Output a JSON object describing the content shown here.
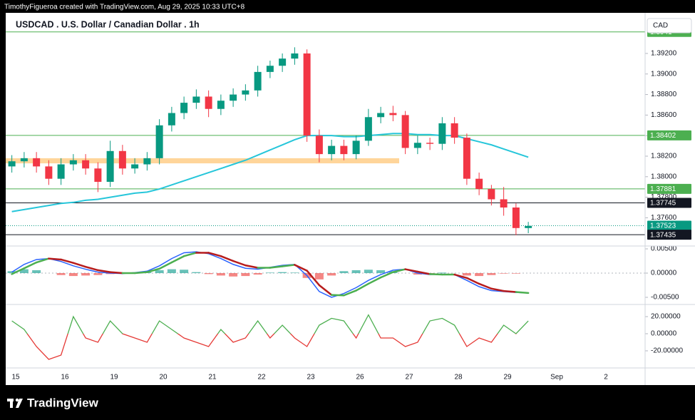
{
  "header": {
    "credit": "TimothyFigueroa created with TradingView.com, Aug 29, 2025 10:33 UTC+8"
  },
  "footer": {
    "logo": "TradingView"
  },
  "chart_data": [
    {
      "type": "candlestick",
      "title": "USDCAD . U.S. Dollar / Canadian Dollar . 1h",
      "currency": "CAD",
      "up_color": "#089981",
      "down_color": "#f23645",
      "open": [
        1.381,
        1.3815,
        1.3818,
        1.381,
        1.3798,
        1.3812,
        1.3816,
        1.3808,
        1.3795,
        1.3825,
        1.3808,
        1.3812,
        1.3818,
        1.385,
        1.3862,
        1.3872,
        1.3878,
        1.3866,
        1.3874,
        1.388,
        1.3884,
        1.3902,
        1.3908,
        1.3915,
        1.392,
        1.384,
        1.3822,
        1.383,
        1.3822,
        1.3835,
        1.3858,
        1.3862,
        1.386,
        1.3828,
        1.3833,
        1.3832,
        1.3852,
        1.3838,
        1.3798,
        1.3788,
        1.3778,
        1.377,
        1.375
      ],
      "high": [
        1.3821,
        1.3824,
        1.3824,
        1.3816,
        1.3818,
        1.3822,
        1.3822,
        1.3814,
        1.3835,
        1.3831,
        1.3818,
        1.3824,
        1.3856,
        1.3868,
        1.3878,
        1.3885,
        1.3884,
        1.388,
        1.3886,
        1.389,
        1.3908,
        1.3913,
        1.392,
        1.3926,
        1.3924,
        1.3846,
        1.3836,
        1.3836,
        1.384,
        1.3866,
        1.3868,
        1.3869,
        1.3864,
        1.384,
        1.3838,
        1.3858,
        1.3858,
        1.3842,
        1.3804,
        1.3792,
        1.379,
        1.3774,
        1.3756
      ],
      "low": [
        1.3804,
        1.3809,
        1.3804,
        1.3792,
        1.3792,
        1.3806,
        1.3802,
        1.3785,
        1.379,
        1.3802,
        1.3803,
        1.3806,
        1.3812,
        1.3844,
        1.3856,
        1.3866,
        1.3858,
        1.386,
        1.3868,
        1.3874,
        1.3878,
        1.3896,
        1.3902,
        1.3909,
        1.3834,
        1.3814,
        1.3816,
        1.3816,
        1.3817,
        1.383,
        1.3852,
        1.3854,
        1.3822,
        1.3822,
        1.3826,
        1.3826,
        1.3832,
        1.3792,
        1.3782,
        1.3772,
        1.3762,
        1.3743,
        1.3745
      ],
      "close": [
        1.3815,
        1.3818,
        1.381,
        1.3798,
        1.3812,
        1.3816,
        1.3808,
        1.3795,
        1.3825,
        1.3808,
        1.3812,
        1.3818,
        1.385,
        1.3862,
        1.3872,
        1.3878,
        1.3866,
        1.3874,
        1.388,
        1.3884,
        1.3902,
        1.3908,
        1.3915,
        1.392,
        1.384,
        1.3822,
        1.383,
        1.3822,
        1.3835,
        1.3858,
        1.3862,
        1.386,
        1.3828,
        1.3833,
        1.3832,
        1.3852,
        1.3838,
        1.3798,
        1.3788,
        1.3778,
        1.377,
        1.375,
        1.3752
      ],
      "ma": {
        "color": "#26c6da",
        "values": [
          1.3766,
          1.3768,
          1.377,
          1.3772,
          1.3774,
          1.3775,
          1.3777,
          1.3778,
          1.378,
          1.3782,
          1.3784,
          1.3785,
          1.3788,
          1.3792,
          1.3796,
          1.38,
          1.3804,
          1.3808,
          1.3812,
          1.3816,
          1.3821,
          1.3826,
          1.3831,
          1.3836,
          1.384,
          1.384,
          1.384,
          1.3839,
          1.3839,
          1.384,
          1.3841,
          1.3842,
          1.3842,
          1.3841,
          1.3841,
          1.384,
          1.384,
          1.3837,
          1.3834,
          1.3831,
          1.3827,
          1.3823,
          1.3819
        ]
      },
      "zone": {
        "from": 1.3813,
        "to": 1.3818,
        "color": "#ffd59a"
      },
      "hlines": [
        {
          "value": 1.3941,
          "color": "#4caf50"
        },
        {
          "value": 1.38402,
          "color": "#4caf50"
        },
        {
          "value": 1.37881,
          "color": "#4caf50"
        },
        {
          "value": 1.37745,
          "color": "#131722"
        },
        {
          "value": 1.37523,
          "color": "#089981"
        },
        {
          "value": 1.37435,
          "color": "#131722"
        }
      ],
      "ylim": [
        1.37339,
        1.39526
      ],
      "yticks": [
        {
          "value": 1.376,
          "label": "1.37600"
        },
        {
          "value": 1.378,
          "label": "1.37800"
        },
        {
          "value": 1.38,
          "label": "1.38000"
        },
        {
          "value": 1.382,
          "label": "1.38200"
        },
        {
          "value": 1.384,
          "label": "1.38400"
        },
        {
          "value": 1.386,
          "label": "1.38600"
        },
        {
          "value": 1.388,
          "label": "1.38800"
        },
        {
          "value": 1.39,
          "label": "1.39000"
        },
        {
          "value": 1.392,
          "label": "1.39200"
        }
      ],
      "x_labels": [
        "15",
        "16",
        "19",
        "20",
        "21",
        "22",
        "23",
        "26",
        "27",
        "28",
        "29",
        "Sep",
        "2"
      ],
      "grid": false
    },
    {
      "type": "macd",
      "macd": {
        "color": "#2962ff",
        "values": [
          0.0002,
          0.0018,
          0.0028,
          0.003,
          0.0024,
          0.0015,
          0.0008,
          0.0002,
          0.0,
          -0.0001,
          0.0001,
          0.0004,
          0.0015,
          0.003,
          0.0042,
          0.0044,
          0.004,
          0.003,
          0.0018,
          0.001,
          0.0008,
          0.0012,
          0.0016,
          0.0018,
          -0.0005,
          -0.0038,
          -0.005,
          -0.0042,
          -0.003,
          -0.0015,
          -0.0003,
          0.0006,
          0.0008,
          0.0,
          -0.0003,
          -0.0002,
          -0.0003,
          -0.0015,
          -0.0028,
          -0.0036,
          -0.0038,
          -0.004,
          -0.0041
        ]
      },
      "signal": {
        "up_color": "#4caf50",
        "down_color": "#b71c1c",
        "values": [
          -0.0002,
          0.001,
          0.0022,
          0.003,
          0.0028,
          0.0021,
          0.0013,
          0.0006,
          0.0002,
          0.0,
          0.0,
          0.0002,
          0.0009,
          0.0022,
          0.0035,
          0.0042,
          0.0042,
          0.0035,
          0.0025,
          0.0016,
          0.0011,
          0.0011,
          0.0014,
          0.0017,
          0.0005,
          -0.0025,
          -0.0045,
          -0.0046,
          -0.0036,
          -0.0022,
          -0.0009,
          0.0002,
          0.0008,
          0.0003,
          -0.0002,
          -0.0003,
          -0.0003,
          -0.001,
          -0.0022,
          -0.0032,
          -0.0037,
          -0.0039,
          -0.0041
        ]
      },
      "histogram": {
        "pos_color": "#26a69a",
        "neg_color": "#ef5350",
        "values": [
          0.0004,
          0.0008,
          0.0006,
          0.0,
          -0.0004,
          -0.0006,
          -0.0005,
          -0.0004,
          -0.0002,
          -0.0001,
          0.0001,
          0.0002,
          0.0006,
          0.0008,
          0.0007,
          0.0002,
          -0.0002,
          -0.0005,
          -0.0007,
          -0.0006,
          -0.0003,
          0.0001,
          0.0002,
          0.0001,
          -0.001,
          -0.0013,
          -0.0005,
          0.0004,
          0.0006,
          0.0007,
          0.0006,
          0.0004,
          0.0,
          -0.0003,
          -0.0001,
          0.0001,
          0.0,
          -0.0005,
          -0.0006,
          -0.0004,
          -0.0001,
          -0.0001,
          0.0
        ]
      },
      "ylim": [
        -0.00618,
        0.00559
      ],
      "yticks": [
        {
          "value": -0.005,
          "label": "-0.00500"
        },
        {
          "value": 0,
          "label": "0.00000"
        },
        {
          "value": 0.005,
          "label": "0.00500"
        }
      ]
    },
    {
      "type": "oscillator",
      "pos_color": "#4caf50",
      "neg_color": "#e53935",
      "values": [
        15,
        5,
        -15,
        -30,
        -25,
        20,
        -5,
        -10,
        15,
        0,
        -5,
        -10,
        15,
        5,
        -5,
        -10,
        -15,
        5,
        -10,
        -5,
        15,
        -5,
        10,
        -5,
        -15,
        10,
        18,
        15,
        -5,
        22,
        -5,
        -5,
        -15,
        -10,
        15,
        18,
        10,
        -15,
        -5,
        -10,
        10,
        0,
        15
      ],
      "ylim": [
        -39.2,
        31.7
      ],
      "yticks": [
        {
          "value": -20,
          "label": "-20.00000"
        },
        {
          "value": 0,
          "label": "0.00000"
        },
        {
          "value": 20,
          "label": "20.00000"
        }
      ]
    }
  ]
}
